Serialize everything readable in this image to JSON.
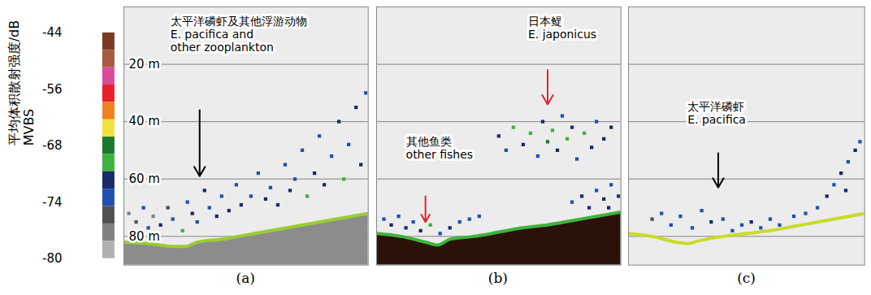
{
  "chart_data": {
    "type": "echogram",
    "ylim": [
      0,
      90
    ],
    "yticks": [
      {
        "value": 20,
        "label": "20 m"
      },
      {
        "value": 40,
        "label": "40 m"
      },
      {
        "value": 60,
        "label": "60 m"
      },
      {
        "value": 80,
        "label": "80 m"
      }
    ],
    "grid": true,
    "color_bar": {
      "label": [
        "平均体积散射强度/dB",
        "MVBS"
      ],
      "lim": [
        -80,
        -44
      ],
      "ticks": [
        -44,
        -56,
        -68,
        -74,
        -80
      ],
      "colors": [
        "#7b3a26",
        "#a65a3f",
        "#d94c9a",
        "#e8202a",
        "#f08020",
        "#f0e040",
        "#1a7a30",
        "#40b040",
        "#1a2a6a",
        "#2050b0",
        "#505050",
        "#808080",
        "#b0b0b0"
      ]
    },
    "panels": [
      {
        "label": "(a)",
        "xlim": [
          0,
          100
        ],
        "tick_labels": "y",
        "echoes": {
          "x": [
            2,
            5,
            8,
            10,
            12,
            15,
            18,
            20,
            24,
            26,
            28,
            30,
            33,
            35,
            38,
            40,
            43,
            46,
            48,
            52,
            55,
            58,
            60,
            63,
            66,
            68,
            70,
            73,
            75,
            78,
            80,
            82,
            85,
            88,
            90,
            92,
            95,
            97,
            99
          ],
          "depth": [
            72,
            75,
            70,
            77,
            73,
            76,
            70,
            74,
            78,
            68,
            72,
            75,
            64,
            70,
            73,
            66,
            71,
            62,
            69,
            66,
            58,
            67,
            63,
            69,
            55,
            64,
            60,
            50,
            66,
            58,
            45,
            62,
            52,
            40,
            60,
            48,
            35,
            55,
            30
          ],
          "mvbs": [
            -77,
            -76,
            -74,
            -73,
            -78,
            -72,
            -75,
            -73,
            -70,
            -74,
            -72,
            -73,
            -72,
            -73,
            -71,
            -74,
            -72,
            -73,
            -71,
            -73,
            -74,
            -72,
            -73,
            -71,
            -73,
            -72,
            -73,
            -74,
            -70,
            -72,
            -73,
            -71,
            -73,
            -72,
            -70,
            -73,
            -72,
            -71,
            -73
          ]
        },
        "seabed": {
          "x": [
            0,
            10,
            20,
            25,
            30,
            40,
            50,
            60,
            70,
            80,
            90,
            100
          ],
          "depth": [
            82,
            82.5,
            83.5,
            83.5,
            82,
            81,
            79.5,
            78,
            76.5,
            75,
            73.5,
            72
          ],
          "colors": [
            "#9acd32",
            "#8c8c8c"
          ]
        },
        "annotations": [
          {
            "lines": [
              "太平洋磷虾及其他浮游动物",
              "E. pacifica and",
              "other zooplankton"
            ],
            "x": 19,
            "depth": 3,
            "arrow": {
              "x1": 31,
              "depth1": 36,
              "x2": 31,
              "depth2": 59,
              "color": "#000000"
            }
          }
        ]
      },
      {
        "label": "(b)",
        "xlim": [
          0,
          100
        ],
        "tick_labels": false,
        "echoes": {
          "x": [
            50,
            53,
            56,
            60,
            63,
            66,
            68,
            70,
            72,
            74,
            76,
            78,
            80,
            82,
            85,
            88,
            90,
            93,
            96,
            3,
            6,
            9,
            12,
            15,
            18,
            22,
            26,
            30,
            34,
            38,
            42,
            80,
            84,
            87,
            90,
            93,
            96,
            99,
            95
          ],
          "depth": [
            45,
            50,
            42,
            48,
            44,
            52,
            40,
            47,
            43,
            50,
            38,
            46,
            42,
            53,
            44,
            49,
            40,
            46,
            42,
            74,
            76,
            73,
            77,
            75,
            78,
            76,
            79,
            77,
            75,
            74,
            73,
            68,
            66,
            70,
            64,
            67,
            62,
            66,
            70
          ],
          "mvbs": [
            -72,
            -73,
            -70,
            -72,
            -69,
            -73,
            -71,
            -68,
            -70,
            -72,
            -73,
            -69,
            -71,
            -73,
            -70,
            -72,
            -73,
            -71,
            -72,
            -73,
            -72,
            -74,
            -71,
            -73,
            -72,
            -70,
            -73,
            -72,
            -73,
            -74,
            -73,
            -73,
            -72,
            -71,
            -73,
            -72,
            -73,
            -72,
            -71
          ]
        },
        "seabed": {
          "x": [
            0,
            10,
            20,
            25,
            30,
            40,
            50,
            60,
            70,
            80,
            90,
            100
          ],
          "depth": [
            79,
            80,
            82,
            83,
            81,
            80,
            78.5,
            77,
            76,
            74.5,
            73,
            71.5
          ],
          "colors": [
            "#3cb43c",
            "#2a1208"
          ]
        },
        "annotations": [
          {
            "lines": [
              "日本鳀",
              "E. japonicus"
            ],
            "x": 62,
            "depth": 3,
            "arrow": {
              "x1": 70,
              "depth1": 22,
              "x2": 70,
              "depth2": 34,
              "color": "#e8202a"
            }
          },
          {
            "lines": [
              "其他鱼类",
              "other fishes"
            ],
            "x": 12,
            "depth": 45,
            "arrow": {
              "x1": 20,
              "depth1": 66,
              "x2": 20,
              "depth2": 75,
              "color": "#e8202a"
            }
          }
        ]
      },
      {
        "label": "(c)",
        "xlim": [
          0,
          100
        ],
        "tick_labels": false,
        "echoes": {
          "x": [
            10,
            14,
            18,
            22,
            27,
            31,
            35,
            40,
            44,
            48,
            52,
            56,
            60,
            64,
            70,
            75,
            80,
            84,
            87,
            90,
            93,
            96,
            98,
            92
          ],
          "depth": [
            74,
            72,
            76,
            73,
            77,
            71,
            75,
            74,
            78,
            76,
            75,
            77,
            74,
            76,
            73,
            72,
            70,
            66,
            62,
            58,
            54,
            50,
            47,
            64
          ],
          "mvbs": [
            -75,
            -73,
            -74,
            -73,
            -74,
            -73,
            -72,
            -73,
            -74,
            -73,
            -71,
            -73,
            -74,
            -73,
            -74,
            -73,
            -73,
            -72,
            -73,
            -72,
            -73,
            -72,
            -73,
            -71
          ]
        },
        "seabed": {
          "x": [
            0,
            10,
            20,
            25,
            30,
            40,
            50,
            60,
            70,
            80,
            90,
            100
          ],
          "depth": [
            79,
            80,
            82,
            82.5,
            81.5,
            80,
            79,
            78,
            76.5,
            75,
            73.5,
            72
          ],
          "colors": [
            "#c8dc28"
          ]
        },
        "annotations": [
          {
            "lines": [
              "太平洋磷虾",
              "E. pacifica"
            ],
            "x": 25,
            "depth": 33,
            "arrow": {
              "x1": 38,
              "depth1": 51,
              "x2": 38,
              "depth2": 63,
              "color": "#000000"
            }
          }
        ]
      }
    ]
  }
}
